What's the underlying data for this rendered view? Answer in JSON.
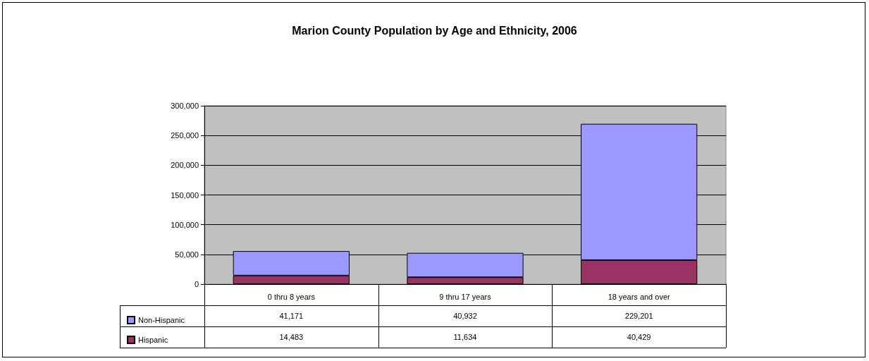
{
  "chart_data": {
    "type": "bar",
    "title": "Marion County Population by Age and Ethnicity, 2006",
    "categories": [
      "0 thru 8 years",
      "9 thru 17 years",
      "18 years and over"
    ],
    "stacked": true,
    "series": [
      {
        "name": "Hispanic",
        "color": "#993366",
        "values": [
          14483,
          11634,
          40429
        ],
        "value_labels": [
          "14,483",
          "11,634",
          "40,429"
        ]
      },
      {
        "name": "Non-Hispanic",
        "color": "#9999ff",
        "values": [
          41171,
          40932,
          229201
        ],
        "value_labels": [
          "41,171",
          "40,932",
          "229,201"
        ]
      }
    ],
    "ylim": [
      0,
      300000
    ],
    "yticks": [
      0,
      {
        "value": 50000,
        "label": "50,000"
      },
      {
        "value": 100000,
        "label": "100,000"
      },
      {
        "value": 150000,
        "label": "150,000"
      },
      {
        "value": 200000,
        "label": "200,000"
      },
      {
        "value": 250000,
        "label": "250,000"
      },
      {
        "value": 300000,
        "label": "300,000"
      }
    ],
    "grid": "y",
    "legend": "bottom left"
  }
}
